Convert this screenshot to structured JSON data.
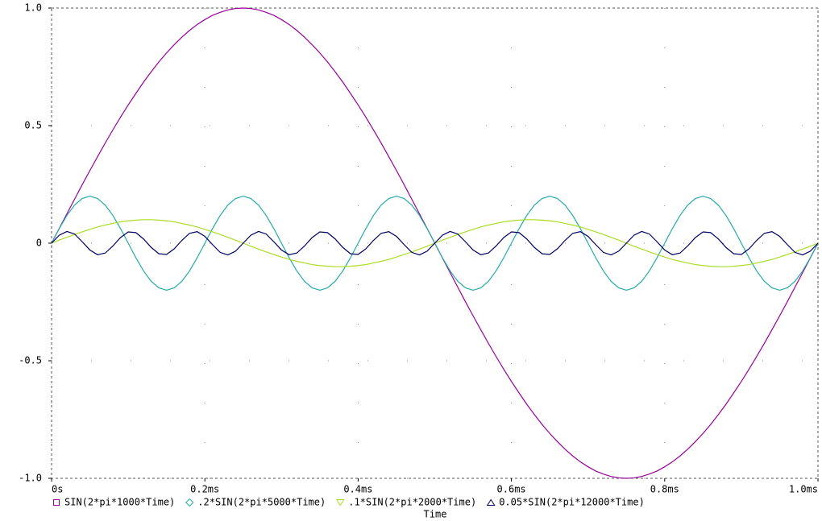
{
  "chart_data": {
    "type": "line",
    "xlabel": "Time",
    "x": [
      0,
      0.01,
      0.02,
      0.03,
      0.04,
      0.05,
      0.06,
      0.07,
      0.08,
      0.09,
      0.1,
      0.11,
      0.12,
      0.13,
      0.14,
      0.15,
      0.16,
      0.17,
      0.18,
      0.19,
      0.2,
      0.21,
      0.22,
      0.23,
      0.24,
      0.25,
      0.26,
      0.27,
      0.28,
      0.29,
      0.3,
      0.31,
      0.32,
      0.33,
      0.34,
      0.35,
      0.36,
      0.37,
      0.38,
      0.39,
      0.4,
      0.41,
      0.42,
      0.43,
      0.44,
      0.45,
      0.46,
      0.47,
      0.48,
      0.49,
      0.5,
      0.51,
      0.52,
      0.53,
      0.54,
      0.55,
      0.56,
      0.57,
      0.58,
      0.59,
      0.6,
      0.61,
      0.62,
      0.63,
      0.64,
      0.65,
      0.66,
      0.67,
      0.68,
      0.69,
      0.7,
      0.71,
      0.72,
      0.73,
      0.74,
      0.75,
      0.76,
      0.77,
      0.78,
      0.79,
      0.8,
      0.81,
      0.82,
      0.83,
      0.84,
      0.85,
      0.86,
      0.87,
      0.88,
      0.89,
      0.9,
      0.91,
      0.92,
      0.93,
      0.94,
      0.95,
      0.96,
      0.97,
      0.98,
      0.99,
      1
    ],
    "series": [
      {
        "name": "SIN(2*pi*1000*Time)",
        "color": "#990099",
        "marker": "square",
        "values": [
          0,
          0.063,
          0.125,
          0.187,
          0.249,
          0.309,
          0.368,
          0.426,
          0.482,
          0.536,
          0.588,
          0.637,
          0.685,
          0.729,
          0.771,
          0.809,
          0.844,
          0.876,
          0.905,
          0.93,
          0.951,
          0.969,
          0.982,
          0.992,
          0.998,
          1,
          0.998,
          0.992,
          0.982,
          0.969,
          0.951,
          0.93,
          0.905,
          0.876,
          0.844,
          0.809,
          0.771,
          0.729,
          0.685,
          0.637,
          0.588,
          0.536,
          0.482,
          0.426,
          0.368,
          0.309,
          0.249,
          0.187,
          0.125,
          0.063,
          0,
          -0.063,
          -0.125,
          -0.187,
          -0.249,
          -0.309,
          -0.368,
          -0.426,
          -0.482,
          -0.536,
          -0.588,
          -0.637,
          -0.685,
          -0.729,
          -0.771,
          -0.809,
          -0.844,
          -0.876,
          -0.905,
          -0.93,
          -0.951,
          -0.969,
          -0.982,
          -0.992,
          -0.998,
          -1,
          -0.998,
          -0.992,
          -0.982,
          -0.969,
          -0.951,
          -0.93,
          -0.905,
          -0.876,
          -0.844,
          -0.809,
          -0.771,
          -0.729,
          -0.685,
          -0.637,
          -0.588,
          -0.536,
          -0.482,
          -0.426,
          -0.368,
          -0.309,
          -0.249,
          -0.187,
          -0.125,
          -0.063,
          0
        ]
      },
      {
        "name": ".2*SIN(2*pi*5000*Time)",
        "color": "#22aaaa",
        "marker": "diamond",
        "values": [
          0,
          0.062,
          0.118,
          0.162,
          0.19,
          0.2,
          0.19,
          0.162,
          0.118,
          0.062,
          0,
          -0.062,
          -0.118,
          -0.162,
          -0.19,
          -0.2,
          -0.19,
          -0.162,
          -0.118,
          -0.062,
          0,
          0.062,
          0.118,
          0.162,
          0.19,
          0.2,
          0.19,
          0.162,
          0.118,
          0.062,
          0,
          -0.062,
          -0.118,
          -0.162,
          -0.19,
          -0.2,
          -0.19,
          -0.162,
          -0.118,
          -0.062,
          0,
          0.062,
          0.118,
          0.162,
          0.19,
          0.2,
          0.19,
          0.162,
          0.118,
          0.062,
          0,
          -0.062,
          -0.118,
          -0.162,
          -0.19,
          -0.2,
          -0.19,
          -0.162,
          -0.118,
          -0.062,
          0,
          0.062,
          0.118,
          0.162,
          0.19,
          0.2,
          0.19,
          0.162,
          0.118,
          0.062,
          0,
          -0.062,
          -0.118,
          -0.162,
          -0.19,
          -0.2,
          -0.19,
          -0.162,
          -0.118,
          -0.062,
          0,
          0.062,
          0.118,
          0.162,
          0.19,
          0.2,
          0.19,
          0.162,
          0.118,
          0.062,
          0,
          -0.062,
          -0.118,
          -0.162,
          -0.19,
          -0.2,
          -0.19,
          -0.162,
          -0.118,
          -0.062,
          0
        ]
      },
      {
        "name": ".1*SIN(2*pi*2000*Time)",
        "color": "#aadd22",
        "marker": "triangle-down",
        "values": [
          0,
          0.013,
          0.025,
          0.037,
          0.048,
          0.059,
          0.069,
          0.077,
          0.084,
          0.091,
          0.095,
          0.098,
          0.1,
          0.1,
          0.098,
          0.095,
          0.091,
          0.084,
          0.077,
          0.069,
          0.059,
          0.048,
          0.037,
          0.025,
          0.013,
          0,
          -0.013,
          -0.025,
          -0.037,
          -0.048,
          -0.059,
          -0.069,
          -0.077,
          -0.084,
          -0.091,
          -0.095,
          -0.098,
          -0.1,
          -0.1,
          -0.098,
          -0.095,
          -0.091,
          -0.084,
          -0.077,
          -0.069,
          -0.059,
          -0.048,
          -0.037,
          -0.025,
          -0.013,
          0,
          0.013,
          0.025,
          0.037,
          0.048,
          0.059,
          0.069,
          0.077,
          0.084,
          0.091,
          0.095,
          0.098,
          0.1,
          0.1,
          0.098,
          0.095,
          0.091,
          0.084,
          0.077,
          0.069,
          0.059,
          0.048,
          0.037,
          0.025,
          0.013,
          0,
          -0.013,
          -0.025,
          -0.037,
          -0.048,
          -0.059,
          -0.069,
          -0.077,
          -0.084,
          -0.091,
          -0.095,
          -0.098,
          -0.1,
          -0.1,
          -0.098,
          -0.095,
          -0.091,
          -0.084,
          -0.077,
          -0.069,
          -0.059,
          -0.048,
          -0.037,
          -0.025,
          -0.013,
          0
        ]
      },
      {
        "name": "0.05*SIN(2*pi*12000*Time)",
        "color": "#000066",
        "marker": "triangle-up",
        "values": [
          0,
          0.034,
          0.05,
          0.039,
          0.006,
          -0.029,
          -0.049,
          -0.042,
          -0.012,
          0.024,
          0.048,
          0.045,
          0.018,
          -0.018,
          -0.045,
          -0.048,
          -0.024,
          0.012,
          0.042,
          0.049,
          0.029,
          -0.006,
          -0.039,
          -0.05,
          -0.034,
          0,
          0.034,
          0.05,
          0.039,
          0.006,
          -0.029,
          -0.049,
          -0.042,
          -0.012,
          0.024,
          0.048,
          0.045,
          0.018,
          -0.018,
          -0.045,
          -0.048,
          -0.024,
          0.012,
          0.042,
          0.049,
          0.029,
          -0.006,
          -0.039,
          -0.05,
          -0.034,
          0,
          0.034,
          0.05,
          0.039,
          0.006,
          -0.029,
          -0.049,
          -0.042,
          -0.012,
          0.024,
          0.048,
          0.045,
          0.018,
          -0.018,
          -0.045,
          -0.048,
          -0.024,
          0.012,
          0.042,
          0.049,
          0.029,
          -0.006,
          -0.039,
          -0.05,
          -0.034,
          0,
          0.034,
          0.05,
          0.039,
          0.006,
          -0.029,
          -0.049,
          -0.042,
          -0.012,
          0.024,
          0.048,
          0.045,
          0.018,
          -0.018,
          -0.045,
          -0.048,
          -0.024,
          0.012,
          0.042,
          0.049,
          0.029,
          -0.006,
          -0.039,
          -0.05,
          -0.034,
          0
        ]
      }
    ],
    "xlim": [
      0,
      1
    ],
    "xticks": [
      {
        "value": 0,
        "label": "0s"
      },
      {
        "value": 0.2,
        "label": "0.2ms"
      },
      {
        "value": 0.4,
        "label": "0.4ms"
      },
      {
        "value": 0.6,
        "label": "0.6ms"
      },
      {
        "value": 0.8,
        "label": "0.8ms"
      },
      {
        "value": 1,
        "label": "1.0ms"
      }
    ],
    "ylim": [
      -1,
      1
    ],
    "yticks": [
      {
        "value": -1,
        "label": "-1.0"
      },
      -0.5,
      0,
      0.5,
      {
        "value": 1,
        "label": "1.0"
      }
    ],
    "grid": true
  }
}
